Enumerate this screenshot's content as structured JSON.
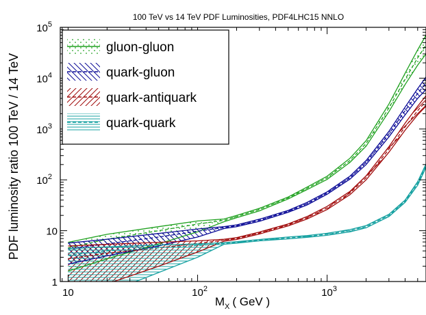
{
  "chart_data": {
    "type": "line",
    "title": "100 TeV vs 14 TeV PDF Luminosities, PDF4LHC15 NNLO",
    "xlabel_main": "M",
    "xlabel_sub": "X",
    "xlabel_unit": "( GeV )",
    "ylabel": "PDF luminosity ratio 100 TeV / 14 TeV",
    "xscale": "log",
    "yscale": "log",
    "xlim": [
      8.7,
      5800
    ],
    "ylim": [
      1,
      100000
    ],
    "x_ticklabels": [
      {
        "value": 10,
        "base": "10",
        "exp": ""
      },
      {
        "value": 100,
        "base": "10",
        "exp": "2"
      },
      {
        "value": 1000,
        "base": "10",
        "exp": "3"
      }
    ],
    "y_ticklabels": [
      {
        "value": 1,
        "base": "1",
        "exp": ""
      },
      {
        "value": 10,
        "base": "10",
        "exp": ""
      },
      {
        "value": 100,
        "base": "10",
        "exp": "2"
      },
      {
        "value": 1000,
        "base": "10",
        "exp": "3"
      },
      {
        "value": 10000,
        "base": "10",
        "exp": "4"
      },
      {
        "value": 100000,
        "base": "10",
        "exp": "5"
      }
    ],
    "legend_position": "top-left",
    "series": [
      {
        "name": "gluon-gluon",
        "color": "#1ea01e",
        "fill": "dots",
        "x": [
          10,
          20,
          50,
          100,
          160,
          200,
          300,
          500,
          700,
          1000,
          1500,
          2000,
          3000,
          4000,
          5000,
          5800
        ],
        "central": [
          4.6,
          6.8,
          10,
          13.5,
          16,
          19,
          26,
          44,
          68,
          110,
          240,
          520,
          2600,
          9500,
          25000,
          45000
        ],
        "upper": [
          5.9,
          8.5,
          12,
          15.5,
          17,
          20,
          27.5,
          46,
          72,
          118,
          265,
          590,
          3100,
          12500,
          36000,
          70000
        ],
        "lower": [
          1.6,
          2.8,
          5.5,
          9.5,
          15,
          18,
          24.5,
          42,
          64,
          102,
          220,
          460,
          2200,
          7500,
          18000,
          30000
        ]
      },
      {
        "name": "quark-gluon",
        "color": "#0a0a96",
        "fill": "backslash",
        "x": [
          10,
          20,
          50,
          100,
          160,
          200,
          300,
          500,
          700,
          1000,
          1500,
          2000,
          3000,
          4000,
          5000,
          5800
        ],
        "central": [
          4.4,
          5.5,
          7.5,
          9.8,
          11.5,
          12.5,
          16,
          24,
          34,
          55,
          110,
          220,
          800,
          2300,
          5000,
          8000
        ],
        "upper": [
          5.7,
          6.8,
          8.8,
          10.8,
          12,
          13,
          16.8,
          25,
          36,
          58,
          118,
          240,
          900,
          2700,
          6200,
          10500
        ],
        "lower": [
          2.2,
          3.2,
          5,
          7.5,
          11,
          12,
          15.3,
          23,
          32,
          52,
          103,
          200,
          700,
          1900,
          4000,
          6000
        ]
      },
      {
        "name": "quark-antiquark",
        "color": "#a00a0a",
        "fill": "slash",
        "x": [
          10,
          20,
          50,
          100,
          160,
          200,
          300,
          500,
          700,
          1000,
          1500,
          2000,
          3000,
          4000,
          5000,
          5800
        ],
        "central": [
          2.8,
          3.6,
          4.6,
          5.6,
          6.5,
          7,
          9,
          13,
          18,
          28,
          55,
          110,
          400,
          1100,
          2300,
          3500
        ],
        "upper": [
          5,
          5.4,
          5.9,
          6.3,
          6.8,
          7.3,
          9.4,
          13.6,
          19,
          30,
          59,
          120,
          450,
          1300,
          2800,
          4500
        ],
        "lower": [
          0.7,
          0.9,
          2,
          3.8,
          6.2,
          6.7,
          8.6,
          12.4,
          17,
          26,
          51,
          100,
          350,
          950,
          1900,
          2800
        ]
      },
      {
        "name": "quark-quark",
        "color": "#14a0a0",
        "fill": "horizontal",
        "x": [
          10,
          20,
          50,
          100,
          160,
          200,
          300,
          500,
          700,
          1000,
          1500,
          2000,
          3000,
          4000,
          5000,
          5800
        ],
        "central": [
          3.3,
          4,
          4.6,
          5.1,
          5.6,
          5.9,
          6.5,
          7.2,
          7.7,
          8.5,
          10,
          12,
          20,
          38,
          85,
          190
        ],
        "upper": [
          4.4,
          4.8,
          5.2,
          5.5,
          5.8,
          6.1,
          6.7,
          7.5,
          8,
          8.9,
          10.5,
          12.6,
          21,
          40,
          92,
          205
        ],
        "lower": [
          0.5,
          0.6,
          1.5,
          3,
          5.4,
          5.7,
          6.3,
          6.9,
          7.4,
          8.1,
          9.5,
          11.4,
          19,
          36,
          78,
          175
        ]
      }
    ]
  }
}
